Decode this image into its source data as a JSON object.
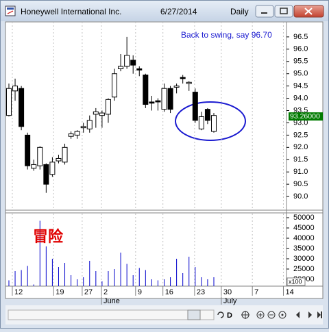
{
  "window": {
    "title": "Honeywell International Inc.",
    "date": "6/27/2014",
    "period": "Daily"
  },
  "toolbar": {
    "period_button": "D"
  },
  "chart_data": {
    "type": "candlestick",
    "annotation": "Back to swing, say 96.70",
    "annotation_color": "#1a1ad0",
    "note": "冒险",
    "note_color": "#e00000",
    "up_color": "#ffffff",
    "down_color": "#000000",
    "open": [
      93.3,
      94.3,
      94.4,
      92.5,
      91.15,
      91.25,
      91.3,
      90.9,
      91.45,
      91.4,
      92.45,
      92.5,
      92.8,
      92.75,
      93.35,
      93.3,
      93.35,
      94.05,
      95.2,
      95.3,
      95.55,
      95.2,
      94.95,
      93.85,
      93.9,
      93.55,
      94.4,
      94.45,
      94.85,
      94.6,
      94.25,
      92.75,
      93.55,
      92.65
    ],
    "high": [
      94.6,
      94.8,
      94.5,
      92.6,
      91.5,
      92.05,
      91.35,
      91.6,
      91.7,
      92.15,
      92.65,
      92.7,
      93.0,
      93.3,
      93.6,
      93.5,
      94.0,
      95.2,
      95.8,
      96.5,
      95.75,
      95.3,
      95.0,
      94.1,
      94.0,
      94.6,
      94.5,
      94.6,
      94.95,
      94.7,
      94.4,
      93.45,
      93.6,
      93.4
    ],
    "low": [
      93.26,
      93.9,
      92.7,
      91.1,
      91.05,
      91.1,
      90.15,
      90.8,
      91.35,
      91.3,
      92.35,
      92.35,
      92.6,
      92.6,
      92.8,
      92.8,
      93.0,
      93.9,
      95.1,
      95.2,
      95.0,
      94.9,
      93.6,
      93.5,
      93.5,
      93.45,
      93.4,
      94.2,
      94.6,
      94.3,
      93.0,
      92.7,
      92.95,
      92.6
    ],
    "close": [
      94.4,
      94.5,
      92.85,
      91.25,
      91.3,
      92.0,
      90.5,
      91.4,
      91.55,
      92.0,
      92.55,
      92.65,
      92.85,
      93.1,
      93.45,
      93.4,
      93.95,
      95.0,
      95.3,
      95.75,
      95.35,
      95.15,
      93.75,
      93.8,
      93.85,
      94.4,
      93.55,
      94.5,
      94.8,
      94.65,
      93.1,
      93.25,
      93.1,
      93.3
    ],
    "ylim": [
      89.5,
      97.11
    ],
    "yticks": [
      {
        "value": 90,
        "label": "90.0"
      },
      90.5,
      {
        "value": 91,
        "label": "91.0"
      },
      91.5,
      {
        "value": 92,
        "label": "92.0"
      },
      92.5,
      {
        "value": 93,
        "label": "93.0"
      },
      93.5,
      {
        "value": 94,
        "label": "94.0"
      },
      94.5,
      {
        "value": 95,
        "label": "95.0"
      },
      95.5,
      {
        "value": 96,
        "label": "96.0"
      },
      96.5
    ],
    "last_price": {
      "value": 93.26,
      "label": "93.26000"
    },
    "xlim": [
      -0.55,
      44.7
    ],
    "xticks": [
      {
        "value": 0.55,
        "label": "12"
      },
      {
        "value": 7.2,
        "label": "19"
      },
      {
        "value": 11.8,
        "label": "27"
      },
      {
        "value": 14.9,
        "label": "2"
      },
      {
        "value": 20.4,
        "label": "9"
      },
      {
        "value": 24.8,
        "label": "16"
      },
      {
        "value": 29.9,
        "label": "23"
      },
      {
        "value": 34.2,
        "label": "30"
      },
      {
        "value": 39.2,
        "label": "7"
      },
      {
        "value": 44.2,
        "label": "14"
      }
    ],
    "month_ticks": [
      {
        "value": 14.9,
        "label": "June"
      },
      {
        "value": 34.2,
        "label": "July"
      }
    ],
    "grid_x": true,
    "volume": {
      "type": "bar",
      "color": "#0000cc",
      "values": [
        19500,
        24000,
        24500,
        26500,
        17500,
        48500,
        36000,
        30000,
        26000,
        28000,
        22000,
        20000,
        21000,
        29000,
        24000,
        19000,
        24000,
        25000,
        33000,
        27500,
        22000,
        25500,
        24500,
        20000,
        19500,
        20000,
        21000,
        30000,
        23000,
        31000,
        26000,
        21000,
        20000,
        21000
      ],
      "ylim": [
        16670,
        52670
      ],
      "yticks": [
        20000,
        25000,
        30000,
        35000,
        40000,
        45000,
        50000
      ],
      "multiplier_label": "x100"
    }
  }
}
